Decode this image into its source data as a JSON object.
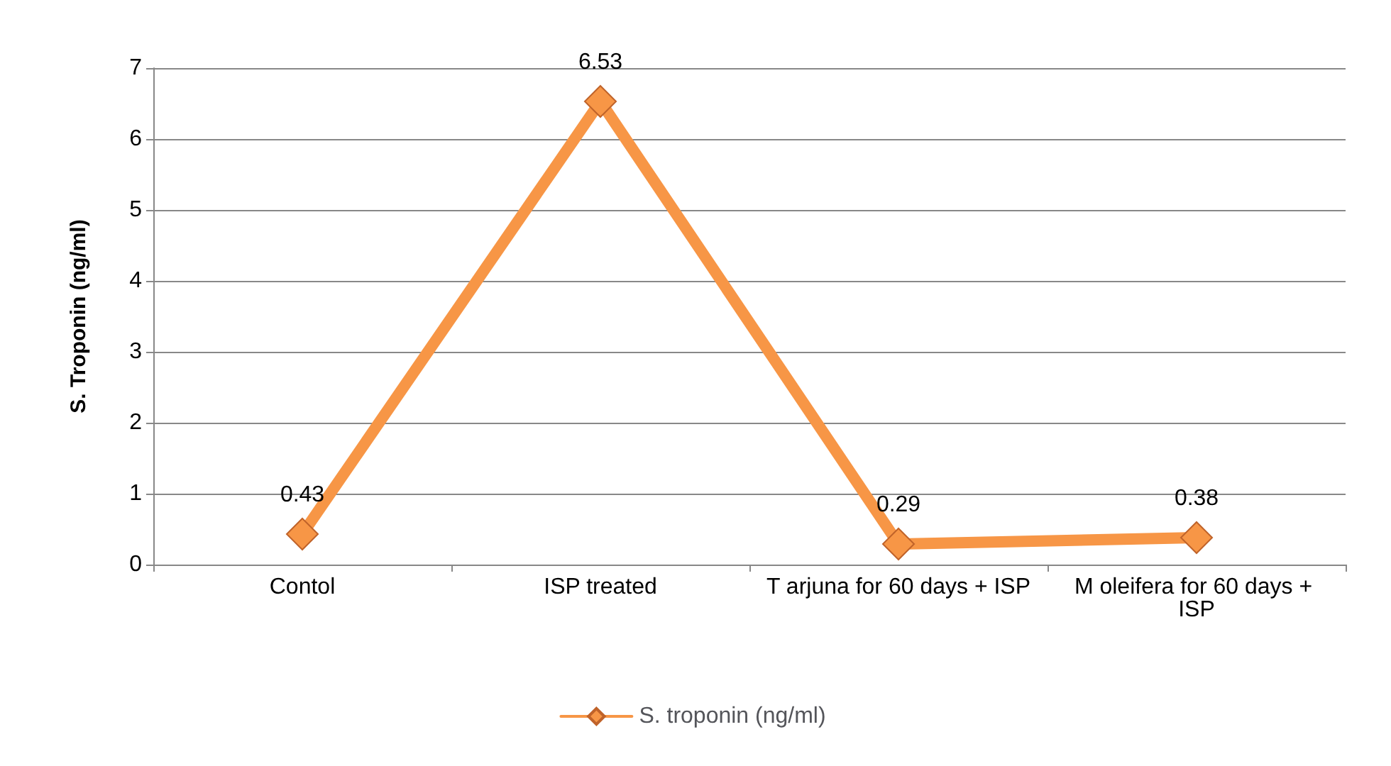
{
  "chart_data": {
    "type": "line",
    "ylabel": "S. Troponin (ng/ml)",
    "categories": [
      "Contol",
      "ISP treated",
      "T arjuna for 60 days + ISP",
      "M oleifera for 60 days + ISP"
    ],
    "series": [
      {
        "name": "S. troponin (ng/ml)",
        "color": "#f79646",
        "values": [
          0.43,
          6.53,
          0.29,
          0.38
        ]
      }
    ],
    "ylim": [
      0,
      7
    ],
    "yticks": [
      0,
      1,
      2,
      3,
      4,
      5,
      6,
      7
    ],
    "grid": "y",
    "legend": "bottom",
    "marker": "diamond",
    "data_labels": true
  }
}
